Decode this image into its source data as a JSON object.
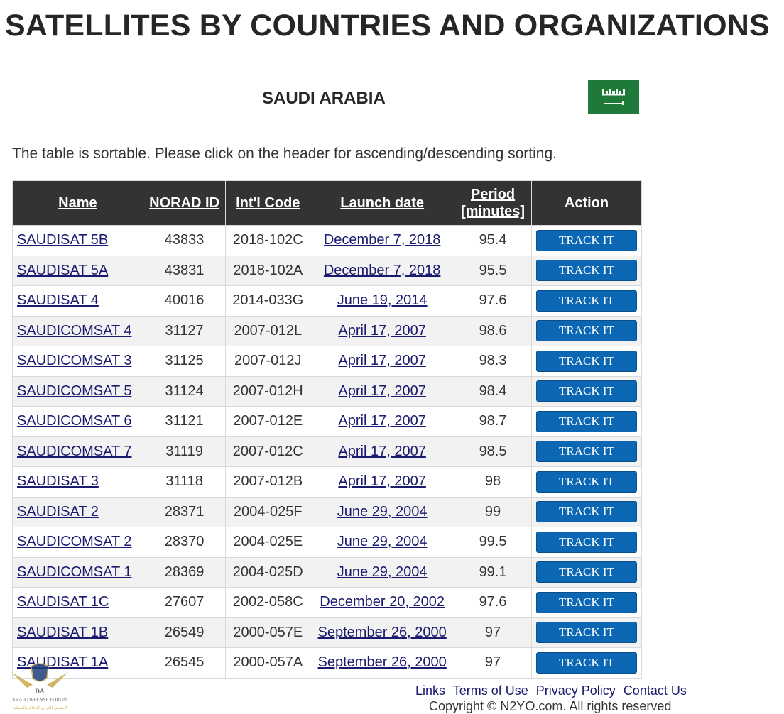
{
  "page": {
    "title": "SATELLITES BY COUNTRIES AND ORGANIZATIONS",
    "country": "SAUDI ARABIA",
    "sort_note": "The table is sortable. Please click on the header for ascending/descending sorting."
  },
  "table": {
    "headers": {
      "name": "Name",
      "norad": "NORAD ID",
      "intl": "Int'l Code",
      "launch": "Launch date",
      "period_line1": "Period",
      "period_line2": "[minutes]",
      "action": "Action"
    },
    "track_label": "TRACK IT",
    "rows": [
      {
        "name": "SAUDISAT 5B",
        "norad": "43833",
        "intl": "2018-102C",
        "launch": "December 7, 2018",
        "period": "95.4"
      },
      {
        "name": "SAUDISAT 5A",
        "norad": "43831",
        "intl": "2018-102A",
        "launch": "December 7, 2018",
        "period": "95.5"
      },
      {
        "name": "SAUDISAT 4",
        "norad": "40016",
        "intl": "2014-033G",
        "launch": "June 19, 2014",
        "period": "97.6"
      },
      {
        "name": "SAUDICOMSAT 4",
        "norad": "31127",
        "intl": "2007-012L",
        "launch": "April 17, 2007",
        "period": "98.6"
      },
      {
        "name": "SAUDICOMSAT 3",
        "norad": "31125",
        "intl": "2007-012J",
        "launch": "April 17, 2007",
        "period": "98.3"
      },
      {
        "name": "SAUDICOMSAT 5",
        "norad": "31124",
        "intl": "2007-012H",
        "launch": "April 17, 2007",
        "period": "98.4"
      },
      {
        "name": "SAUDICOMSAT 6",
        "norad": "31121",
        "intl": "2007-012E",
        "launch": "April 17, 2007",
        "period": "98.7"
      },
      {
        "name": "SAUDICOMSAT 7",
        "norad": "31119",
        "intl": "2007-012C",
        "launch": "April 17, 2007",
        "period": "98.5"
      },
      {
        "name": "SAUDISAT 3",
        "norad": "31118",
        "intl": "2007-012B",
        "launch": "April 17, 2007",
        "period": "98"
      },
      {
        "name": "SAUDISAT 2",
        "norad": "28371",
        "intl": "2004-025F",
        "launch": "June 29, 2004",
        "period": "99"
      },
      {
        "name": "SAUDICOMSAT 2",
        "norad": "28370",
        "intl": "2004-025E",
        "launch": "June 29, 2004",
        "period": "99.5"
      },
      {
        "name": "SAUDICOMSAT 1",
        "norad": "28369",
        "intl": "2004-025D",
        "launch": "June 29, 2004",
        "period": "99.1"
      },
      {
        "name": "SAUDISAT 1C",
        "norad": "27607",
        "intl": "2002-058C",
        "launch": "December 20, 2002",
        "period": "97.6"
      },
      {
        "name": "SAUDISAT 1B",
        "norad": "26549",
        "intl": "2000-057E",
        "launch": "September 26, 2000",
        "period": "97"
      },
      {
        "name": "SAUDISAT 1A",
        "norad": "26545",
        "intl": "2000-057A",
        "launch": "September 26, 2000",
        "period": "97"
      }
    ]
  },
  "footer": {
    "links": [
      "Links",
      "Terms of Use",
      "Privacy Policy",
      "Contact Us"
    ],
    "copyright": "Copyright © N2YO.com. All rights reserved"
  },
  "watermark": {
    "line1": "ARAB DEFENSE FORUM",
    "line2": "المنتدى العربي للدفاع والتسليح"
  },
  "colors": {
    "header_bg": "#333333",
    "button_blue": "#0b67b3",
    "flag_green": "#1f7a3a",
    "link": "#1a1a6e"
  },
  "icons": {
    "flag": "saudi-arabia-flag-icon",
    "logo": "arab-defense-forum-logo"
  }
}
